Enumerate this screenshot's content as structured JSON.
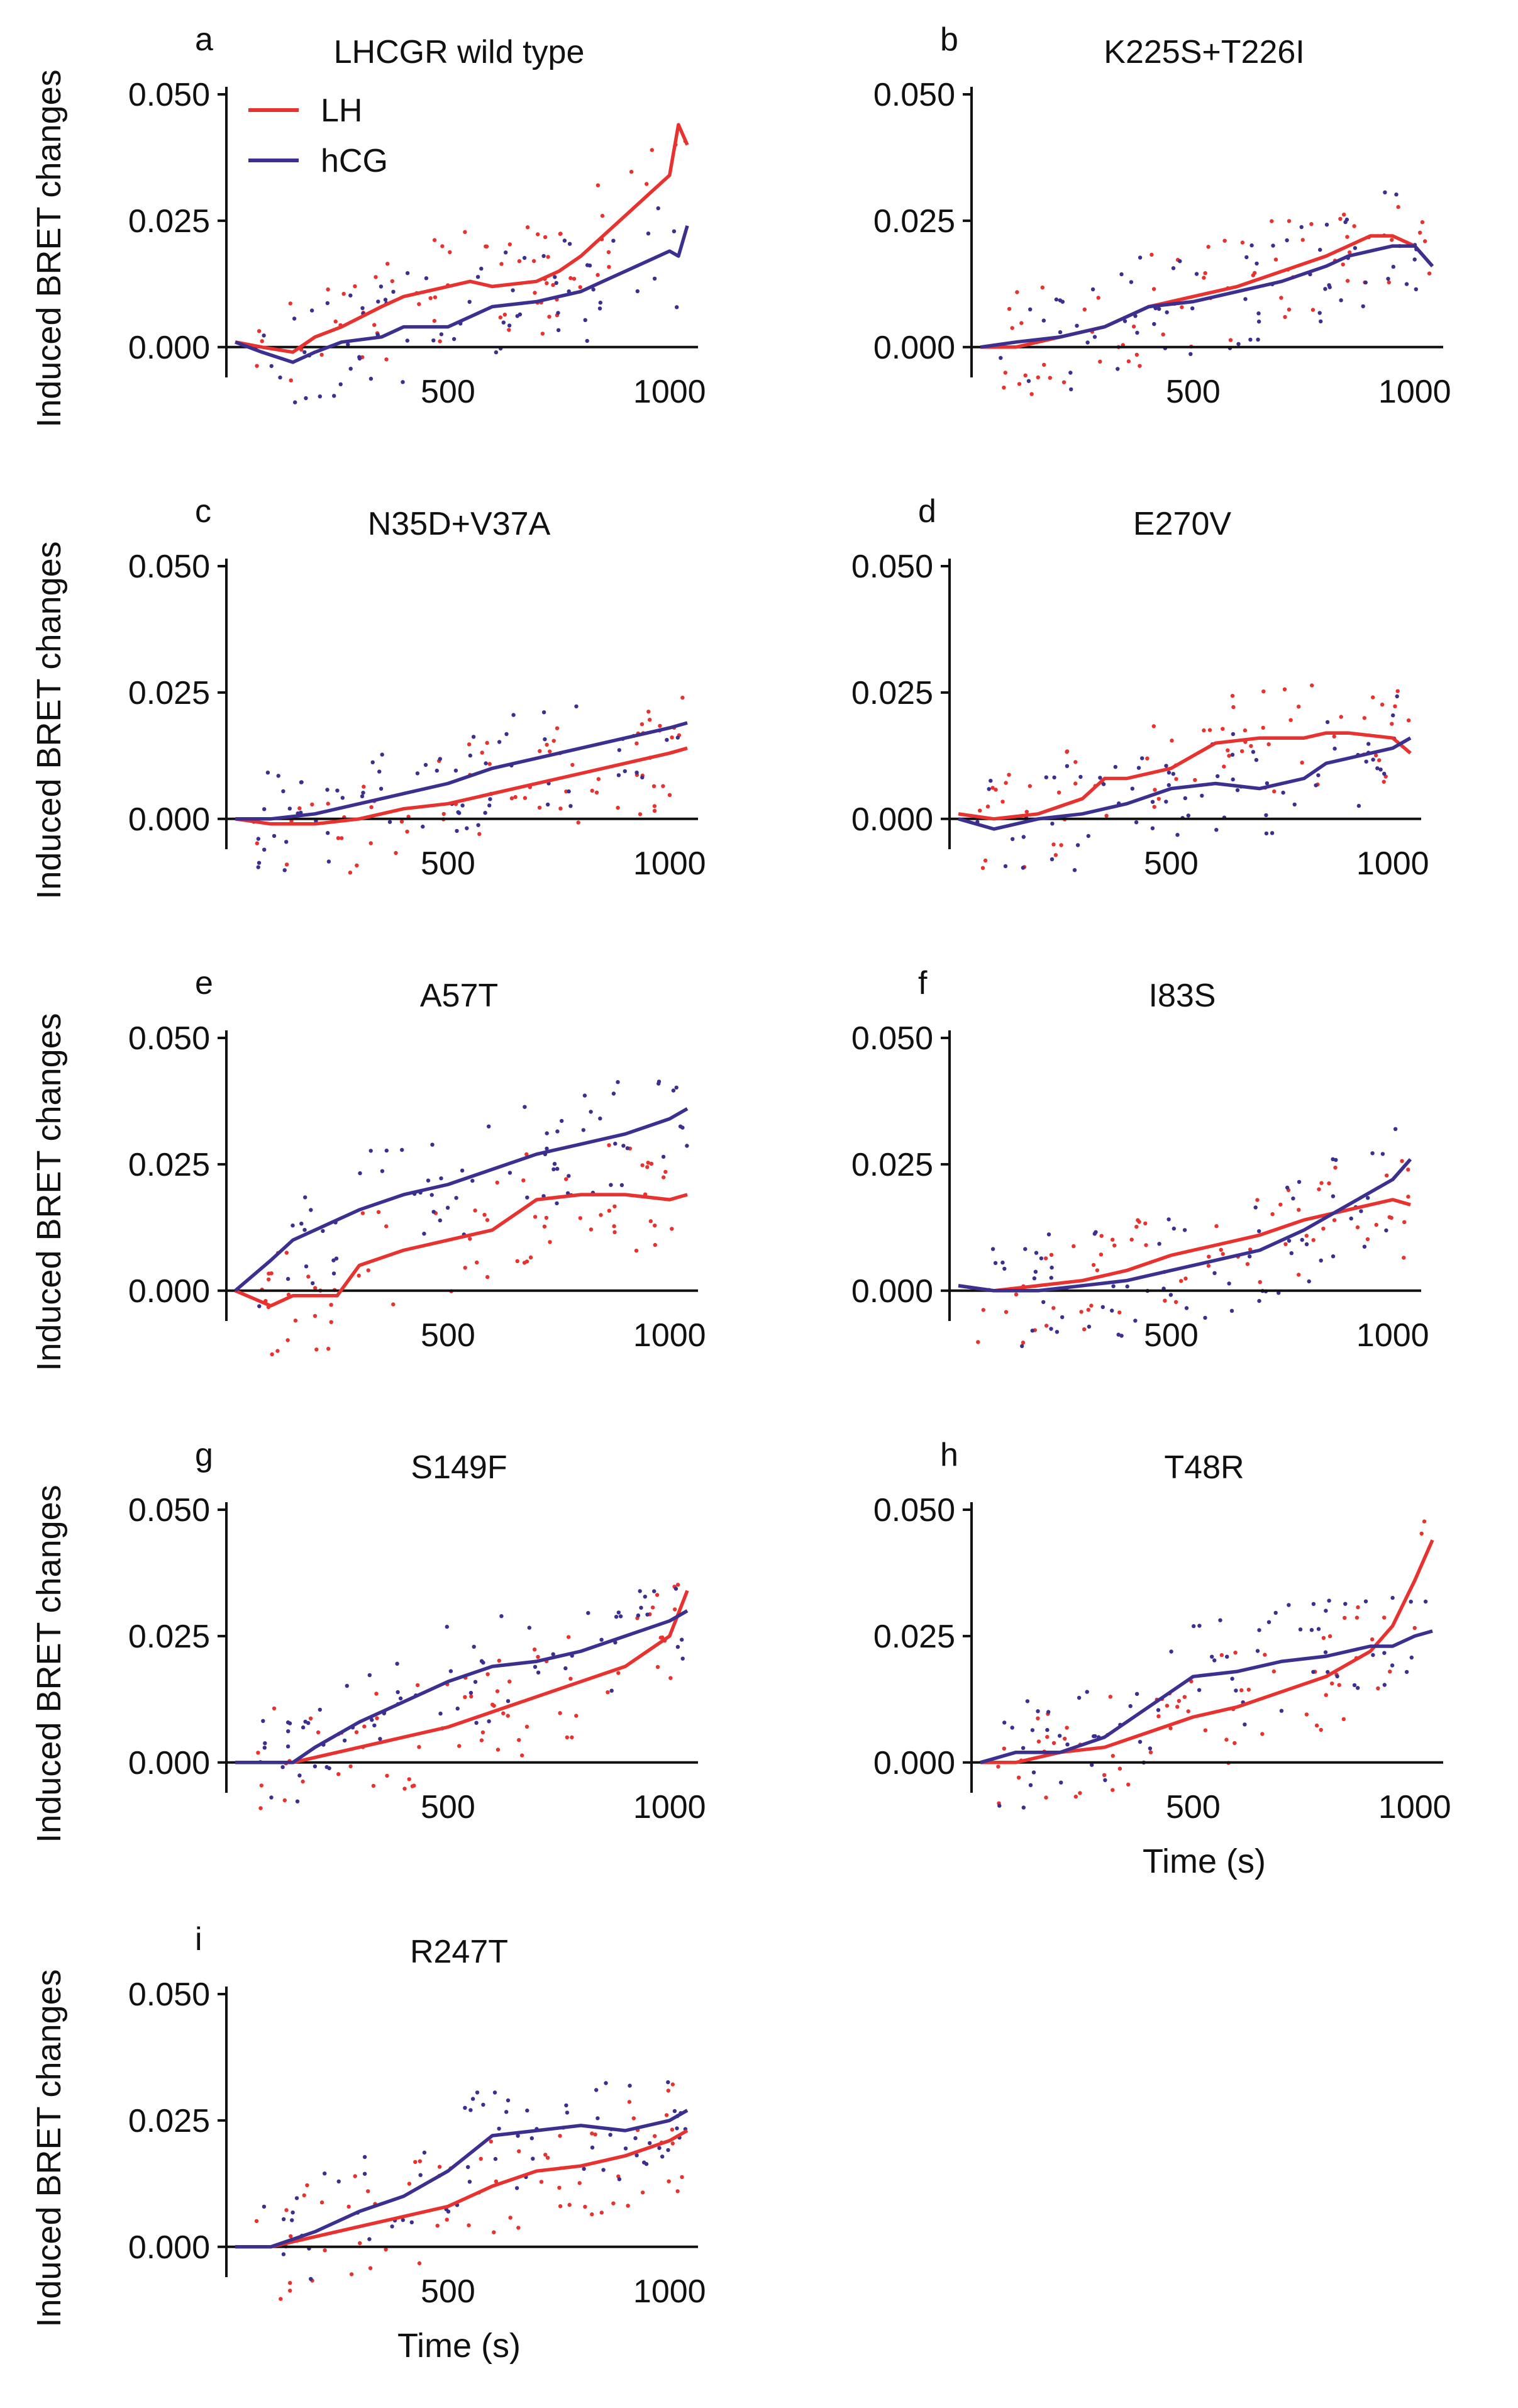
{
  "figure": {
    "y_axis_label": "Induced BRET changes",
    "x_axis_label": "Time (s)"
  },
  "legend": [
    {
      "label": "LH",
      "color": "#e8322f"
    },
    {
      "label": "hCG",
      "color": "#3b2f8f"
    }
  ],
  "chart_data": [
    {
      "type": "line",
      "letter": "a",
      "title": "LHCGR wild type",
      "x": [
        20,
        80,
        150,
        200,
        260,
        350,
        400,
        500,
        550,
        600,
        700,
        750,
        800,
        850,
        900,
        950,
        1000,
        1020,
        1040
      ],
      "series": [
        {
          "name": "LH",
          "values": [
            0.001,
            0.0,
            -0.001,
            0.002,
            0.004,
            0.008,
            0.01,
            0.012,
            0.013,
            0.012,
            0.013,
            0.015,
            0.018,
            0.022,
            0.026,
            0.03,
            0.034,
            0.044,
            0.04
          ]
        },
        {
          "name": "hCG",
          "values": [
            0.001,
            -0.001,
            -0.003,
            -0.001,
            0.001,
            0.002,
            0.004,
            0.004,
            0.006,
            0.008,
            0.009,
            0.01,
            0.011,
            0.013,
            0.015,
            0.017,
            0.019,
            0.018,
            0.024
          ]
        }
      ],
      "xlim": [
        0,
        1050
      ],
      "ylim": [
        -0.006,
        0.05
      ],
      "yticks": [
        "0.000",
        "0.025",
        "0.050"
      ],
      "xticks": [
        "500",
        "1000"
      ],
      "show_xlabel": false
    },
    {
      "type": "line",
      "letter": "b",
      "title": "K225S+T226I",
      "x": [
        20,
        100,
        200,
        300,
        400,
        500,
        600,
        700,
        800,
        850,
        900,
        950,
        1000,
        1040
      ],
      "series": [
        {
          "name": "LH",
          "values": [
            0.0,
            0.0,
            0.002,
            0.004,
            0.008,
            0.01,
            0.012,
            0.015,
            0.018,
            0.02,
            0.022,
            0.022,
            0.02,
            0.016
          ]
        },
        {
          "name": "hCG",
          "values": [
            0.0,
            0.001,
            0.002,
            0.004,
            0.008,
            0.009,
            0.011,
            0.013,
            0.016,
            0.018,
            0.019,
            0.02,
            0.02,
            0.016
          ]
        }
      ],
      "xlim": [
        0,
        1050
      ],
      "ylim": [
        -0.006,
        0.05
      ],
      "yticks": [
        "0.000",
        "0.025",
        "0.050"
      ],
      "xticks": [
        "500",
        "1000"
      ],
      "show_xlabel": false
    },
    {
      "type": "line",
      "letter": "c",
      "title": "N35D+V37A",
      "x": [
        20,
        100,
        200,
        300,
        400,
        500,
        600,
        700,
        800,
        900,
        1000,
        1040
      ],
      "series": [
        {
          "name": "LH",
          "values": [
            0.0,
            -0.001,
            -0.001,
            0.0,
            0.002,
            0.003,
            0.005,
            0.007,
            0.009,
            0.011,
            0.013,
            0.014
          ]
        },
        {
          "name": "hCG",
          "values": [
            0.0,
            0.0,
            0.001,
            0.003,
            0.005,
            0.007,
            0.01,
            0.012,
            0.014,
            0.016,
            0.018,
            0.019
          ]
        }
      ],
      "xlim": [
        0,
        1050
      ],
      "ylim": [
        -0.006,
        0.05
      ],
      "yticks": [
        "0.000",
        "0.025",
        "0.050"
      ],
      "xticks": [
        "500",
        "1000"
      ],
      "show_xlabel": false
    },
    {
      "type": "line",
      "letter": "d",
      "title": "E270V",
      "x": [
        20,
        100,
        200,
        300,
        350,
        400,
        500,
        600,
        700,
        800,
        850,
        900,
        1000,
        1040
      ],
      "series": [
        {
          "name": "LH",
          "values": [
            0.001,
            0.0,
            0.001,
            0.004,
            0.008,
            0.008,
            0.01,
            0.015,
            0.016,
            0.016,
            0.017,
            0.017,
            0.016,
            0.013
          ]
        },
        {
          "name": "hCG",
          "values": [
            0.0,
            -0.002,
            0.0,
            0.001,
            0.002,
            0.003,
            0.006,
            0.007,
            0.006,
            0.008,
            0.011,
            0.012,
            0.014,
            0.016
          ]
        }
      ],
      "xlim": [
        0,
        1050
      ],
      "ylim": [
        -0.006,
        0.05
      ],
      "yticks": [
        "0.000",
        "0.025",
        "0.050"
      ],
      "xticks": [
        "500",
        "1000"
      ],
      "show_xlabel": false
    },
    {
      "type": "line",
      "letter": "e",
      "title": "A57T",
      "x": [
        20,
        100,
        150,
        200,
        250,
        300,
        400,
        500,
        600,
        700,
        800,
        900,
        1000,
        1040
      ],
      "series": [
        {
          "name": "LH",
          "values": [
            0.0,
            -0.003,
            -0.001,
            -0.001,
            -0.001,
            0.005,
            0.008,
            0.01,
            0.012,
            0.018,
            0.019,
            0.019,
            0.018,
            0.019
          ]
        },
        {
          "name": "hCG",
          "values": [
            0.0,
            0.006,
            0.01,
            0.012,
            0.014,
            0.016,
            0.019,
            0.021,
            0.024,
            0.027,
            0.029,
            0.031,
            0.034,
            0.036
          ]
        }
      ],
      "xlim": [
        0,
        1050
      ],
      "ylim": [
        -0.006,
        0.05
      ],
      "yticks": [
        "0.000",
        "0.025",
        "0.050"
      ],
      "xticks": [
        "500",
        "1000"
      ],
      "show_xlabel": false
    },
    {
      "type": "line",
      "letter": "f",
      "title": "I83S",
      "x": [
        20,
        100,
        200,
        300,
        400,
        500,
        600,
        700,
        800,
        900,
        1000,
        1040
      ],
      "series": [
        {
          "name": "LH",
          "values": [
            0.001,
            0.0,
            0.001,
            0.002,
            0.004,
            0.007,
            0.009,
            0.011,
            0.014,
            0.016,
            0.018,
            0.017
          ]
        },
        {
          "name": "hCG",
          "values": [
            0.001,
            0.0,
            0.0,
            0.001,
            0.002,
            0.004,
            0.006,
            0.008,
            0.012,
            0.017,
            0.022,
            0.026
          ]
        }
      ],
      "xlim": [
        0,
        1050
      ],
      "ylim": [
        -0.006,
        0.05
      ],
      "yticks": [
        "0.000",
        "0.025",
        "0.050"
      ],
      "xticks": [
        "500",
        "1000"
      ],
      "show_xlabel": false
    },
    {
      "type": "line",
      "letter": "g",
      "title": "S149F",
      "x": [
        20,
        100,
        150,
        200,
        300,
        400,
        500,
        600,
        700,
        800,
        900,
        1000,
        1040
      ],
      "series": [
        {
          "name": "LH",
          "values": [
            0.0,
            0.0,
            0.0,
            0.001,
            0.003,
            0.005,
            0.007,
            0.01,
            0.013,
            0.016,
            0.019,
            0.025,
            0.034
          ]
        },
        {
          "name": "hCG",
          "values": [
            0.0,
            0.0,
            0.0,
            0.003,
            0.008,
            0.012,
            0.016,
            0.019,
            0.02,
            0.022,
            0.025,
            0.028,
            0.03
          ]
        }
      ],
      "xlim": [
        0,
        1050
      ],
      "ylim": [
        -0.006,
        0.05
      ],
      "yticks": [
        "0.000",
        "0.025",
        "0.050"
      ],
      "xticks": [
        "500",
        "1000"
      ],
      "show_xlabel": false
    },
    {
      "type": "line",
      "letter": "h",
      "title": "T48R",
      "x": [
        20,
        100,
        200,
        300,
        400,
        500,
        600,
        700,
        800,
        900,
        950,
        1000,
        1040
      ],
      "series": [
        {
          "name": "LH",
          "values": [
            0.0,
            0.0,
            0.002,
            0.003,
            0.006,
            0.009,
            0.011,
            0.014,
            0.017,
            0.022,
            0.027,
            0.036,
            0.044
          ]
        },
        {
          "name": "hCG",
          "values": [
            0.0,
            0.002,
            0.002,
            0.005,
            0.011,
            0.017,
            0.018,
            0.02,
            0.021,
            0.023,
            0.023,
            0.025,
            0.026
          ]
        }
      ],
      "xlim": [
        0,
        1050
      ],
      "ylim": [
        -0.006,
        0.05
      ],
      "yticks": [
        "0.000",
        "0.025",
        "0.050"
      ],
      "xticks": [
        "500",
        "1000"
      ],
      "show_xlabel": true
    },
    {
      "type": "line",
      "letter": "i",
      "title": "R247T",
      "x": [
        20,
        100,
        200,
        300,
        400,
        500,
        600,
        700,
        800,
        900,
        1000,
        1040
      ],
      "series": [
        {
          "name": "LH",
          "values": [
            0.0,
            0.0,
            0.002,
            0.004,
            0.006,
            0.008,
            0.012,
            0.015,
            0.016,
            0.018,
            0.021,
            0.023
          ]
        },
        {
          "name": "hCG",
          "values": [
            0.0,
            0.0,
            0.003,
            0.007,
            0.01,
            0.015,
            0.022,
            0.023,
            0.024,
            0.023,
            0.025,
            0.027
          ]
        }
      ],
      "xlim": [
        0,
        1050
      ],
      "ylim": [
        -0.006,
        0.05
      ],
      "yticks": [
        "0.000",
        "0.025",
        "0.050"
      ],
      "xticks": [
        "500",
        "1000"
      ],
      "show_xlabel": true
    }
  ]
}
